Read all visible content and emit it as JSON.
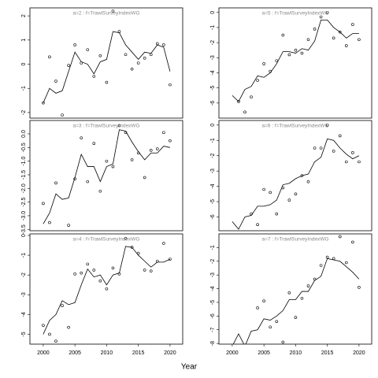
{
  "xlabel": "Year",
  "chart_data": [
    {
      "type": "line",
      "title": "a=2 : f=TrawlSurveyIndexWG",
      "x": [
        2000,
        2001,
        2002,
        2003,
        2004,
        2005,
        2006,
        2007,
        2008,
        2009,
        2010,
        2011,
        2012,
        2013,
        2014,
        2015,
        2016,
        2017,
        2018,
        2019,
        2020
      ],
      "xlim": [
        1997.9,
        2022
      ],
      "ylim": [
        -2.23,
        2.33
      ],
      "yticks": [
        -2,
        -1,
        0,
        1,
        2
      ],
      "series": [
        {
          "style": "line",
          "color": "#000000",
          "values": [
            -1.6,
            -1.0,
            -1.2,
            -1.1,
            -0.3,
            0.5,
            0.1,
            0.0,
            -0.4,
            0.1,
            0.2,
            1.35,
            1.3,
            0.8,
            0.5,
            0.2,
            0.5,
            0.45,
            0.8,
            0.7,
            -0.3
          ]
        },
        {
          "style": "points",
          "color": "#000000",
          "values": [
            -1.6,
            0.3,
            -0.7,
            -2.1,
            -0.05,
            0.8,
            0.05,
            0.6,
            -0.5,
            0.35,
            -0.75,
            2.2,
            1.35,
            0.4,
            -0.2,
            0.05,
            0.25,
            0.4,
            0.85,
            0.8,
            -0.85
          ]
        }
      ]
    },
    {
      "type": "line",
      "title": "a=3 : f=TrawlSurveyIndexWG",
      "x": [
        2000,
        2001,
        2002,
        2003,
        2004,
        2005,
        2006,
        2007,
        2008,
        2009,
        2010,
        2011,
        2012,
        2013,
        2014,
        2015,
        2016,
        2017,
        2018,
        2019,
        2020
      ],
      "xlim": [
        1997.9,
        2022
      ],
      "ylim": [
        -3.55,
        0.49
      ],
      "yticks": [
        {
          "value": 0,
          "label": "0.0"
        },
        -0.5,
        {
          "value": -1,
          "label": "-1.0"
        },
        -1.5,
        {
          "value": -2,
          "label": "-2.0"
        },
        -2.5,
        {
          "value": -3,
          "label": "-3.0"
        },
        -3.5
      ],
      "series": [
        {
          "style": "line",
          "color": "#000000",
          "values": [
            -3.3,
            -2.9,
            -2.2,
            -2.4,
            -2.35,
            -1.6,
            -0.75,
            -1.2,
            -1.2,
            -1.75,
            -1.2,
            -1.1,
            0.15,
            0.1,
            -0.3,
            -0.65,
            -0.95,
            -0.7,
            -0.7,
            -0.45,
            -0.5
          ]
        },
        {
          "style": "points",
          "color": "#000000",
          "values": [
            -2.55,
            -3.25,
            -1.8,
            null,
            -3.35,
            -1.65,
            -0.15,
            -1.75,
            -0.35,
            -2.1,
            -1.0,
            -1.2,
            0.3,
            0.05,
            -0.95,
            -0.7,
            -1.6,
            -0.6,
            -0.55,
            0.05,
            -0.25
          ]
        }
      ]
    },
    {
      "type": "line",
      "title": "a=4 : f=TrawlSurveyIndexWG",
      "x": [
        2000,
        2001,
        2002,
        2003,
        2004,
        2005,
        2006,
        2007,
        2008,
        2009,
        2010,
        2011,
        2012,
        2013,
        2014,
        2015,
        2016,
        2017,
        2018,
        2019,
        2020
      ],
      "xlim": [
        1997.9,
        2022
      ],
      "ylim": [
        -5.5,
        0.08
      ],
      "yticks": [
        -5,
        -4,
        -3,
        -2,
        -1,
        0
      ],
      "xticks": [
        2000,
        2005,
        2010,
        2015,
        2020
      ],
      "series": [
        {
          "style": "line",
          "color": "#000000",
          "values": [
            -5.0,
            -4.3,
            -4.0,
            -3.3,
            -3.5,
            -3.4,
            -2.5,
            -1.7,
            -2.1,
            -2.0,
            -2.5,
            -2.0,
            -1.9,
            -0.55,
            -0.6,
            -1.0,
            -1.3,
            -1.6,
            -1.35,
            -1.35,
            -1.2
          ]
        },
        {
          "style": "points",
          "color": "#000000",
          "values": [
            -4.55,
            -5.0,
            -5.35,
            -3.55,
            -4.65,
            -1.95,
            -1.9,
            -1.45,
            -1.75,
            -2.3,
            -2.7,
            -1.65,
            -1.95,
            -0.15,
            -0.6,
            -0.9,
            -1.75,
            -1.8,
            -1.3,
            -0.4,
            -1.2
          ]
        }
      ]
    },
    {
      "type": "line",
      "title": "a=5 : f=TrawlSurveyIndexWG",
      "x": [
        2000,
        2001,
        2002,
        2003,
        2004,
        2005,
        2006,
        2007,
        2008,
        2009,
        2010,
        2011,
        2012,
        2013,
        2014,
        2015,
        2016,
        2017,
        2018,
        2019,
        2020
      ],
      "xlim": [
        1997.9,
        2022
      ],
      "ylim": [
        -7.0,
        0.3
      ],
      "yticks": [
        -6,
        -5,
        -4,
        -3,
        -2,
        -1,
        0
      ],
      "series": [
        {
          "style": "line",
          "color": "#000000",
          "values": [
            -5.5,
            -5.9,
            -5.1,
            -4.9,
            -4.2,
            -4.3,
            -4.0,
            -3.4,
            -2.6,
            -2.6,
            -2.7,
            -2.4,
            -2.5,
            -1.9,
            -0.5,
            -0.5,
            -1.0,
            -1.3,
            -1.7,
            -1.4,
            -1.4
          ]
        },
        {
          "style": "points",
          "color": "#000000",
          "values": [
            null,
            -5.9,
            -6.6,
            -5.6,
            -4.5,
            -3.4,
            -3.9,
            -3.2,
            -1.5,
            -2.8,
            -2.5,
            -2.7,
            -1.8,
            -1.1,
            -0.3,
            0.0,
            -1.7,
            -1.3,
            -2.2,
            -0.8,
            -1.8
          ]
        }
      ]
    },
    {
      "type": "line",
      "title": "a=6 : f=TrawlSurveyIndexWG",
      "x": [
        2000,
        2001,
        2002,
        2003,
        2004,
        2005,
        2006,
        2007,
        2008,
        2009,
        2010,
        2011,
        2012,
        2013,
        2014,
        2015,
        2016,
        2017,
        2018,
        2019,
        2020
      ],
      "xlim": [
        1997.9,
        2022
      ],
      "ylim": [
        -6.9,
        0.3
      ],
      "yticks": [
        -6,
        -5,
        -4,
        -3,
        -2,
        -1,
        0
      ],
      "series": [
        {
          "style": "line",
          "color": "#000000",
          "values": [
            -6.3,
            -6.8,
            -6.0,
            -5.9,
            -5.3,
            -5.3,
            -5.2,
            -4.9,
            -3.9,
            -3.8,
            -3.5,
            -3.3,
            -3.2,
            -2.4,
            -2.1,
            -0.9,
            -1.0,
            -1.5,
            -1.9,
            -2.2,
            -2.0
          ]
        },
        {
          "style": "points",
          "color": "#000000",
          "values": [
            null,
            null,
            null,
            -5.8,
            -6.5,
            -4.2,
            -4.4,
            -5.8,
            -4.1,
            -4.9,
            -4.5,
            -3.3,
            -3.7,
            -1.5,
            -1.5,
            0.0,
            -1.7,
            -0.7,
            -2.4,
            -1.8,
            -2.4
          ]
        }
      ]
    },
    {
      "type": "line",
      "title": "a=7 : f=TrawlSurveyIndexWG",
      "x": [
        2000,
        2001,
        2002,
        2003,
        2004,
        2005,
        2006,
        2007,
        2008,
        2009,
        2010,
        2011,
        2012,
        2013,
        2014,
        2015,
        2016,
        2017,
        2018,
        2019,
        2020
      ],
      "xlim": [
        1997.9,
        2022
      ],
      "ylim": [
        -8.05,
        0
      ],
      "yticks": [
        -8,
        -7,
        -6,
        -5,
        -4,
        -3,
        -2,
        -1
      ],
      "xticks": [
        2000,
        2005,
        2010,
        2015,
        2020
      ],
      "series": [
        {
          "style": "line",
          "color": "#000000",
          "values": [
            -8.2,
            -7.3,
            -8.2,
            -7.1,
            -7.0,
            -6.2,
            -6.3,
            -6.0,
            -5.6,
            -4.8,
            -4.8,
            -4.2,
            -4.2,
            -3.4,
            -3.1,
            -1.8,
            -1.9,
            -2.0,
            -2.4,
            -2.8,
            -3.3
          ]
        },
        {
          "style": "points",
          "color": "#000000",
          "values": [
            null,
            null,
            null,
            null,
            -5.4,
            -4.9,
            -6.8,
            -6.4,
            -7.9,
            -4.3,
            -6.1,
            -4.7,
            -3.8,
            -3.3,
            -2.3,
            -1.7,
            -1.8,
            -0.2,
            -2.1,
            -0.6,
            -3.9
          ]
        }
      ]
    }
  ]
}
